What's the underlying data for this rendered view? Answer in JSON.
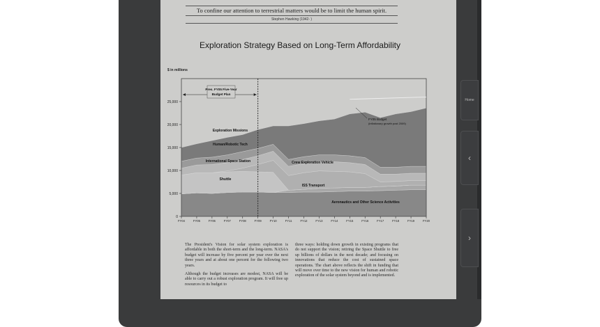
{
  "quote": {
    "text": "To confine our attention to terrestrial matters would be to limit the human spirit.",
    "author": "Stephen Hawking (1942- )"
  },
  "device_buttons": {
    "home_label": "Home",
    "prev_label": "‹",
    "next_label": "›"
  },
  "body_text": {
    "col1_p1": "The President's Vision for solar system exploration is affordable in both the short-term and the long-term. NASA's budget will increase by five percent per year over the next three years and at about one percent for the following two years.",
    "col1_p2": "Although the budget increases are modest, NASA will be able to carry out a robust exploration program. It will free up resources in its budget to",
    "col2_p1": "three ways: holding down growth in existing programs that do not support the vision; retiring the Space Shuttle to free up billions of dollars in the next decade; and focusing on innovations that reduce the cost of sustained space operations. The chart above reflects the shift in funding that will move over time to the new vision for human and robotic exploration of the solar system beyond and is implemented."
  },
  "colors": {
    "screen_bg": "#cdcdcb",
    "total_budget": "#707070",
    "exploration_missions": "#7a7a7a",
    "human_robotic_tech": "#9a9a9a",
    "international_space_station": "#b8b8b8",
    "crew_exploration_vehicle": "#b0b0b0",
    "shuttle": "#c4c4c4",
    "iss_transport": "#a8a8a8",
    "aeronautics_science": "#888888"
  },
  "chart_data": {
    "type": "area",
    "title": "Exploration Strategy Based on Long-Term Affordability",
    "ylabel": "$ in millions",
    "xlabel": "",
    "ylim": [
      0,
      30000
    ],
    "yticks": [
      0,
      5000,
      10000,
      15000,
      20000,
      25000
    ],
    "ytick_labels": [
      "0",
      "5,000",
      "10,000",
      "15,000",
      "20,000",
      "25,000"
    ],
    "x": [
      "FY04",
      "FY05",
      "FY06",
      "FY07",
      "FY08",
      "FY09",
      "FY10",
      "FY11",
      "FY12",
      "FY13",
      "FY14",
      "FY15",
      "FY16",
      "FY17",
      "FY18",
      "FY19",
      "FY20"
    ],
    "series": [
      {
        "name": "Aeronautics and Other Science Activities",
        "values": [
          4900,
          5100,
          5000,
          5200,
          5300,
          5300,
          5200,
          5200,
          5300,
          5300,
          5400,
          5500,
          5500,
          5600,
          5700,
          5800,
          5800
        ]
      },
      {
        "name": "ISS Transport",
        "values": [
          0,
          0,
          0,
          0,
          0,
          0,
          0,
          500,
          600,
          800,
          800,
          800,
          800,
          900,
          900,
          1000,
          1000
        ]
      },
      {
        "name": "Shuttle",
        "values": [
          4100,
          4400,
          4500,
          4500,
          4500,
          4400,
          4400,
          0,
          0,
          0,
          0,
          0,
          0,
          0,
          0,
          0,
          0
        ]
      },
      {
        "name": "Crew Exploration Vehicle",
        "values": [
          0,
          0,
          0,
          200,
          700,
          1600,
          2600,
          3200,
          3600,
          3800,
          3600,
          3400,
          3000,
          1000,
          1000,
          1000,
          1000
        ]
      },
      {
        "name": "International Space Station",
        "values": [
          1500,
          1700,
          1800,
          1800,
          1900,
          1900,
          2000,
          2000,
          2000,
          2000,
          2100,
          2000,
          2000,
          1700,
          1600,
          1600,
          1600
        ]
      },
      {
        "name": "Human/Robotic Tech",
        "values": [
          1500,
          1500,
          1600,
          1700,
          1700,
          1600,
          1500,
          1500,
          1500,
          1500,
          1500,
          1500,
          1500,
          1500,
          1500,
          1500,
          1500
        ]
      },
      {
        "name": "Exploration Missions",
        "values": [
          3000,
          3100,
          3600,
          3800,
          3700,
          4100,
          4000,
          7300,
          7200,
          7400,
          7800,
          9100,
          9900,
          10800,
          11600,
          11900,
          12700
        ]
      }
    ],
    "labels": {
      "exploration_missions": "Exploration Missions",
      "human_robotic_tech": "Human/Robotic Tech",
      "international_space_station": "International Space Station",
      "crew_exploration_vehicle": "Crew Exploration Vehicle",
      "shuttle": "Shuttle",
      "iss_transport": "ISS Transport",
      "aeronautics_science": "Aeronautics and Other Science Activities"
    },
    "annotations": {
      "budget_plan": "Pres. FY05 Five-Year Budget Plan",
      "fy05_budget": "FY05 Budget",
      "fy05_budget_note": "(inflationary growth post 2009)"
    },
    "budget_plan_end_index": 5,
    "fy05_budget_line": [
      {
        "x": "FY15",
        "value": 25500
      },
      {
        "x": "FY20",
        "value": 26000
      }
    ]
  }
}
